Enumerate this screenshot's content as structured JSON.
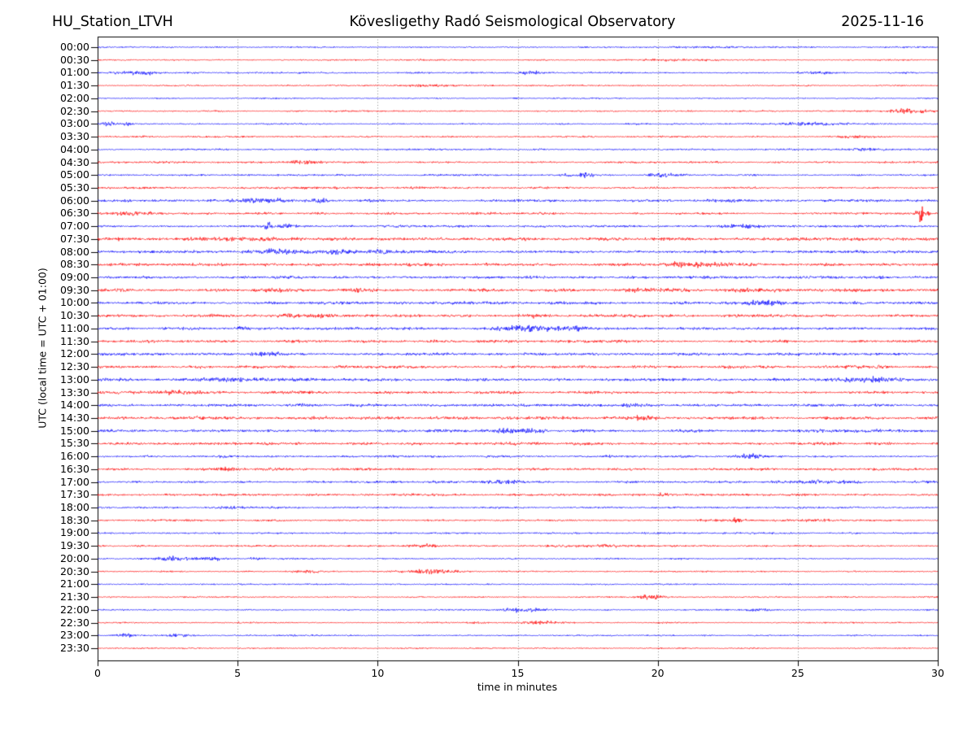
{
  "header": {
    "station": "HU_Station_LTVH",
    "observatory": "Kövesligethy Radó Seismological Observatory",
    "date": "2025-11-16"
  },
  "chart_data": {
    "type": "line",
    "subtype": "helicorder_dayplot",
    "title": "HU_Station_LTVH — Kövesligethy Radó Seismological Observatory — 2025-11-16",
    "xlabel": "time in minutes",
    "ylabel": "UTC (local time = UTC + 01:00)",
    "xlim": [
      0,
      30
    ],
    "x_ticks": [
      0,
      5,
      10,
      15,
      20,
      25,
      30
    ],
    "grid": "vertical dotted gridlines at interior 5-minute ticks",
    "legend": "none",
    "colors": {
      "blue": "#0000ff",
      "red": "#ff0000"
    },
    "line_alternation": "traces on the hour are blue, on the half hour red",
    "event_format": "[center_minute, width_minutes, extra_amplitude_px]",
    "traces": [
      {
        "label": "00:00",
        "color": "blue",
        "b": 0.9,
        "e": [
          [
            21.5,
            2.0,
            0.5
          ]
        ]
      },
      {
        "label": "00:30",
        "color": "red",
        "b": 0.9,
        "e": [
          [
            20.5,
            1.5,
            0.7
          ]
        ]
      },
      {
        "label": "01:00",
        "color": "blue",
        "b": 1.0,
        "e": [
          [
            1.5,
            0.8,
            1.6
          ],
          [
            15.4,
            0.5,
            1.5
          ],
          [
            25.7,
            0.7,
            1.1
          ]
        ]
      },
      {
        "label": "01:30",
        "color": "red",
        "b": 0.9,
        "e": [
          [
            12.0,
            0.8,
            1.0
          ]
        ]
      },
      {
        "label": "02:00",
        "color": "blue",
        "b": 0.8,
        "e": []
      },
      {
        "label": "02:30",
        "color": "red",
        "b": 0.9,
        "e": [
          [
            29.0,
            0.9,
            1.8
          ]
        ]
      },
      {
        "label": "03:00",
        "color": "blue",
        "b": 0.9,
        "e": [
          [
            0.4,
            0.25,
            2.2
          ],
          [
            1.1,
            0.2,
            1.8
          ],
          [
            25.6,
            1.0,
            1.8
          ]
        ]
      },
      {
        "label": "03:30",
        "color": "red",
        "b": 1.0,
        "e": [
          [
            27.0,
            0.8,
            1.0
          ]
        ]
      },
      {
        "label": "04:00",
        "color": "blue",
        "b": 1.0,
        "e": [
          [
            27.6,
            0.6,
            1.4
          ]
        ]
      },
      {
        "label": "04:30",
        "color": "red",
        "b": 1.1,
        "e": [
          [
            7.5,
            0.6,
            1.8
          ],
          [
            2.2,
            0.8,
            0.9
          ]
        ]
      },
      {
        "label": "05:00",
        "color": "blue",
        "b": 1.0,
        "e": [
          [
            17.2,
            0.6,
            1.8
          ],
          [
            20.2,
            0.6,
            1.8
          ]
        ]
      },
      {
        "label": "05:30",
        "color": "red",
        "b": 1.2,
        "e": [
          [
            8.0,
            2.5,
            0.7
          ]
        ]
      },
      {
        "label": "06:00",
        "color": "blue",
        "b": 1.4,
        "e": [
          [
            5.6,
            0.7,
            2.0
          ],
          [
            6.6,
            0.4,
            1.6
          ],
          [
            7.9,
            0.5,
            1.6
          ],
          [
            9.6,
            0.4,
            1.2
          ],
          [
            23.0,
            1.0,
            0.8
          ]
        ]
      },
      {
        "label": "06:30",
        "color": "red",
        "b": 1.4,
        "e": [
          [
            29.45,
            0.18,
            9.0
          ],
          [
            1.2,
            0.8,
            1.2
          ]
        ]
      },
      {
        "label": "07:00",
        "color": "blue",
        "b": 1.4,
        "e": [
          [
            6.1,
            0.12,
            3.8
          ],
          [
            6.7,
            0.25,
            1.8
          ],
          [
            23.0,
            0.8,
            1.0
          ]
        ]
      },
      {
        "label": "07:30",
        "color": "red",
        "b": 1.9,
        "e": [
          [
            4.5,
            0.8,
            1.2
          ]
        ]
      },
      {
        "label": "08:00",
        "color": "blue",
        "b": 1.7,
        "e": [
          [
            6.3,
            1.0,
            2.2
          ],
          [
            8.6,
            0.7,
            1.6
          ],
          [
            10.0,
            0.4,
            1.2
          ]
        ]
      },
      {
        "label": "08:30",
        "color": "red",
        "b": 1.8,
        "e": [
          [
            21.0,
            1.2,
            1.4
          ]
        ]
      },
      {
        "label": "09:00",
        "color": "blue",
        "b": 1.6,
        "e": []
      },
      {
        "label": "09:30",
        "color": "red",
        "b": 1.8,
        "e": [
          [
            6.1,
            0.5,
            1.5
          ],
          [
            9.3,
            0.4,
            1.5
          ],
          [
            19.5,
            0.8,
            1.2
          ],
          [
            23.5,
            0.6,
            1.2
          ]
        ]
      },
      {
        "label": "10:00",
        "color": "blue",
        "b": 1.7,
        "e": [
          [
            23.7,
            0.6,
            2.2
          ]
        ]
      },
      {
        "label": "10:30",
        "color": "red",
        "b": 1.7,
        "e": [
          [
            6.8,
            0.4,
            1.5
          ],
          [
            8.0,
            0.5,
            1.2
          ],
          [
            15.5,
            0.5,
            1.3
          ]
        ]
      },
      {
        "label": "11:00",
        "color": "blue",
        "b": 1.6,
        "e": [
          [
            15.3,
            0.9,
            2.2
          ],
          [
            16.9,
            0.4,
            1.6
          ],
          [
            5.2,
            0.3,
            1.5
          ]
        ]
      },
      {
        "label": "11:30",
        "color": "red",
        "b": 1.6,
        "e": []
      },
      {
        "label": "12:00",
        "color": "blue",
        "b": 1.6,
        "e": [
          [
            6.0,
            0.8,
            1.2
          ]
        ]
      },
      {
        "label": "12:30",
        "color": "red",
        "b": 1.7,
        "e": []
      },
      {
        "label": "13:00",
        "color": "blue",
        "b": 1.7,
        "e": [
          [
            4.5,
            1.0,
            1.5
          ],
          [
            27.5,
            1.1,
            1.8
          ]
        ]
      },
      {
        "label": "13:30",
        "color": "red",
        "b": 1.7,
        "e": [
          [
            2.5,
            1.2,
            1.2
          ]
        ]
      },
      {
        "label": "14:00",
        "color": "blue",
        "b": 1.7,
        "e": [
          [
            19.0,
            0.8,
            1.2
          ]
        ]
      },
      {
        "label": "14:30",
        "color": "red",
        "b": 1.8,
        "e": [
          [
            19.5,
            0.8,
            1.3
          ]
        ]
      },
      {
        "label": "15:00",
        "color": "blue",
        "b": 1.7,
        "e": [
          [
            15.0,
            0.8,
            1.4
          ]
        ]
      },
      {
        "label": "15:30",
        "color": "red",
        "b": 1.7,
        "e": []
      },
      {
        "label": "16:00",
        "color": "blue",
        "b": 1.4,
        "e": [
          [
            23.3,
            0.5,
            2.2
          ]
        ]
      },
      {
        "label": "16:30",
        "color": "red",
        "b": 1.5,
        "e": [
          [
            4.7,
            0.6,
            1.8
          ]
        ]
      },
      {
        "label": "17:00",
        "color": "blue",
        "b": 1.4,
        "e": [
          [
            14.5,
            0.5,
            1.4
          ],
          [
            25.8,
            0.8,
            1.4
          ]
        ]
      },
      {
        "label": "17:30",
        "color": "red",
        "b": 1.3,
        "e": [
          [
            20.2,
            0.15,
            2.5
          ]
        ]
      },
      {
        "label": "18:00",
        "color": "blue",
        "b": 1.1,
        "e": [
          [
            4.8,
            0.4,
            1.2
          ]
        ]
      },
      {
        "label": "18:30",
        "color": "red",
        "b": 1.2,
        "e": [
          [
            22.8,
            0.3,
            1.5
          ],
          [
            25.8,
            0.5,
            1.2
          ]
        ]
      },
      {
        "label": "19:00",
        "color": "blue",
        "b": 1.0,
        "e": []
      },
      {
        "label": "19:30",
        "color": "red",
        "b": 1.1,
        "e": [
          [
            11.8,
            0.4,
            1.5
          ],
          [
            18.0,
            1.5,
            0.9
          ]
        ]
      },
      {
        "label": "20:00",
        "color": "blue",
        "b": 0.9,
        "e": [
          [
            2.8,
            0.8,
            2.0
          ],
          [
            4.1,
            0.4,
            1.4
          ],
          [
            5.6,
            0.25,
            1.2
          ]
        ]
      },
      {
        "label": "20:30",
        "color": "red",
        "b": 0.9,
        "e": [
          [
            12.0,
            0.8,
            2.2
          ],
          [
            7.6,
            0.6,
            1.2
          ]
        ]
      },
      {
        "label": "21:00",
        "color": "blue",
        "b": 0.85,
        "e": []
      },
      {
        "label": "21:30",
        "color": "red",
        "b": 0.85,
        "e": [
          [
            19.7,
            0.5,
            2.2
          ]
        ]
      },
      {
        "label": "22:00",
        "color": "blue",
        "b": 0.85,
        "e": [
          [
            15.3,
            0.9,
            2.2
          ],
          [
            23.5,
            0.4,
            1.0
          ]
        ]
      },
      {
        "label": "22:30",
        "color": "red",
        "b": 0.85,
        "e": [
          [
            15.8,
            0.6,
            1.4
          ],
          [
            13.5,
            0.4,
            1.0
          ]
        ]
      },
      {
        "label": "23:00",
        "color": "blue",
        "b": 0.85,
        "e": [
          [
            1.0,
            0.4,
            2.0
          ],
          [
            2.8,
            0.5,
            1.2
          ]
        ]
      },
      {
        "label": "23:30",
        "color": "red",
        "b": 0.8,
        "e": []
      }
    ]
  }
}
